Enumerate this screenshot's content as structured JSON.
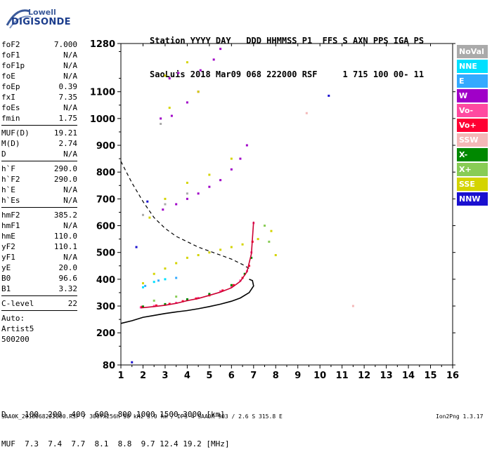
{
  "logo": {
    "line1": "Lowell",
    "line2": "DIGISONDE"
  },
  "header": {
    "line1": "Station YYYY DAY   DDD HHMMSS P1  FFS S AXN PPS IGA PS",
    "line2": "SaoLuis 2018 Mar09 068 222000 RSF     1 715 100 00- 11"
  },
  "params": {
    "group1": [
      {
        "label": "foF2",
        "value": "7.000"
      },
      {
        "label": "foF1",
        "value": "N/A"
      },
      {
        "label": "foF1p",
        "value": "N/A"
      },
      {
        "label": "foE",
        "value": "N/A"
      },
      {
        "label": "foEp",
        "value": "0.39"
      },
      {
        "label": "fxI",
        "value": "7.35"
      },
      {
        "label": "foEs",
        "value": "N/A"
      },
      {
        "label": "fmin",
        "value": "1.75"
      }
    ],
    "group2": [
      {
        "label": "MUF(D)",
        "value": "19.21"
      },
      {
        "label": "M(D)",
        "value": "2.74"
      },
      {
        "label": "D",
        "value": "N/A"
      }
    ],
    "group3": [
      {
        "label": "h`F",
        "value": "290.0"
      },
      {
        "label": "h`F2",
        "value": "290.0"
      },
      {
        "label": "h`E",
        "value": "N/A"
      },
      {
        "label": "h`Es",
        "value": "N/A"
      }
    ],
    "group4": [
      {
        "label": "hmF2",
        "value": "385.2"
      },
      {
        "label": "hmF1",
        "value": "N/A"
      },
      {
        "label": "hmE",
        "value": "110.0"
      },
      {
        "label": "yF2",
        "value": "110.1"
      },
      {
        "label": "yF1",
        "value": "N/A"
      },
      {
        "label": "yE",
        "value": "20.0"
      },
      {
        "label": "B0",
        "value": "96.6"
      },
      {
        "label": "B1",
        "value": "3.32"
      }
    ],
    "group5": [
      {
        "label": "C-level",
        "value": "22"
      }
    ],
    "auto": [
      "Auto:",
      "Artist5",
      "500200"
    ]
  },
  "legend": [
    {
      "label": "NoVal",
      "color": "#aaaaaa"
    },
    {
      "label": "NNE",
      "color": "#00e0ff"
    },
    {
      "label": "E",
      "color": "#33aaff"
    },
    {
      "label": "W",
      "color": "#a000c8"
    },
    {
      "label": "Vo-",
      "color": "#ff4aa0"
    },
    {
      "label": "Vo+",
      "color": "#ff0033"
    },
    {
      "label": "SSW",
      "color": "#f4b8b8"
    },
    {
      "label": "X-",
      "color": "#008800"
    },
    {
      "label": "X+",
      "color": "#88cc55"
    },
    {
      "label": "SSE",
      "color": "#d4d400"
    },
    {
      "label": "NNW",
      "color": "#1a10d0"
    }
  ],
  "footer": {
    "line1": "D    100  200  400  600  800 1000 1500 3000 [km]",
    "line2": "MUF  7.3  7.4  7.7  8.1  8.8  9.7 12.4 19.2 [MHz]",
    "source": "SAA0K_2018068222000.RSF / 300fx256h 50 kHz 5.0 km / DPS-4 SAA0K 903 / 2.6 S 315.8 E",
    "version": "Ion2Png 1.3.17"
  },
  "chart_data": {
    "type": "scatter",
    "xlim": [
      1,
      16
    ],
    "ylim": [
      80,
      1280
    ],
    "x_ticks": [
      1,
      2,
      3,
      4,
      5,
      6,
      7,
      8,
      9,
      10,
      11,
      12,
      13,
      14,
      15,
      16
    ],
    "y_ticks": [
      80,
      200,
      300,
      400,
      500,
      600,
      700,
      800,
      900,
      1000,
      1100,
      1280
    ],
    "grid": false,
    "legend_position": "right",
    "series": [
      {
        "name": "Vo-",
        "color": "#ff4aa0",
        "points": [
          [
            1.9,
            295
          ],
          [
            2.5,
            300
          ],
          [
            3.0,
            305
          ],
          [
            3.5,
            312
          ],
          [
            4.0,
            322
          ],
          [
            4.5,
            330
          ],
          [
            5.0,
            342
          ],
          [
            5.5,
            355
          ],
          [
            6.0,
            372
          ],
          [
            6.4,
            395
          ],
          [
            6.7,
            430
          ],
          [
            6.9,
            500
          ],
          [
            7.0,
            610
          ]
        ]
      },
      {
        "name": "Vo+",
        "color": "#ff0033",
        "points": [
          [
            1.95,
            297
          ],
          [
            2.6,
            302
          ],
          [
            3.2,
            308
          ],
          [
            3.8,
            318
          ],
          [
            4.4,
            328
          ],
          [
            5.0,
            340
          ],
          [
            5.6,
            358
          ],
          [
            6.1,
            378
          ],
          [
            6.5,
            405
          ],
          [
            6.8,
            450
          ],
          [
            6.95,
            540
          ]
        ]
      },
      {
        "name": "X-",
        "color": "#008800",
        "points": [
          [
            2.0,
            298
          ],
          [
            3.0,
            307
          ],
          [
            4.0,
            325
          ],
          [
            5.0,
            345
          ],
          [
            6.0,
            378
          ],
          [
            6.6,
            420
          ],
          [
            6.9,
            480
          ]
        ]
      },
      {
        "name": "W",
        "color": "#a000c8",
        "points": [
          [
            2.9,
            660
          ],
          [
            3.5,
            680
          ],
          [
            4.0,
            700
          ],
          [
            4.5,
            720
          ],
          [
            5.0,
            745
          ],
          [
            5.5,
            770
          ],
          [
            6.0,
            810
          ],
          [
            6.4,
            850
          ],
          [
            6.7,
            900
          ],
          [
            2.8,
            1000
          ],
          [
            3.3,
            1010
          ],
          [
            4.0,
            1060
          ],
          [
            4.5,
            1100
          ],
          [
            3.2,
            1150
          ],
          [
            3.6,
            1170
          ],
          [
            4.6,
            1180
          ],
          [
            5.2,
            1220
          ],
          [
            5.5,
            1260
          ]
        ]
      },
      {
        "name": "SSE",
        "color": "#d4d400",
        "points": [
          [
            2.0,
            385
          ],
          [
            2.5,
            420
          ],
          [
            3.0,
            440
          ],
          [
            3.5,
            460
          ],
          [
            4.0,
            480
          ],
          [
            4.5,
            490
          ],
          [
            5.0,
            500
          ],
          [
            5.5,
            510
          ],
          [
            6.0,
            520
          ],
          [
            6.5,
            530
          ],
          [
            7.2,
            550
          ],
          [
            7.8,
            580
          ],
          [
            8.0,
            490
          ],
          [
            2.3,
            630
          ],
          [
            3.0,
            700
          ],
          [
            4.0,
            760
          ],
          [
            5.0,
            790
          ],
          [
            6.0,
            850
          ],
          [
            3.0,
            1160
          ],
          [
            4.0,
            1210
          ],
          [
            4.5,
            1100
          ],
          [
            3.2,
            1040
          ]
        ]
      },
      {
        "name": "NNE",
        "color": "#00e0ff",
        "points": [
          [
            2.0,
            370
          ],
          [
            2.5,
            390
          ],
          [
            3.0,
            400
          ]
        ]
      },
      {
        "name": "E",
        "color": "#33aaff",
        "points": [
          [
            2.1,
            375
          ],
          [
            2.7,
            395
          ],
          [
            3.5,
            405
          ]
        ]
      },
      {
        "name": "NoVal",
        "color": "#aaaaaa",
        "points": [
          [
            2.0,
            640
          ],
          [
            3.0,
            680
          ],
          [
            4.0,
            720
          ],
          [
            2.8,
            980
          ]
        ]
      },
      {
        "name": "X+",
        "color": "#88cc55",
        "points": [
          [
            2.5,
            320
          ],
          [
            3.5,
            335
          ],
          [
            7.5,
            600
          ],
          [
            7.7,
            540
          ]
        ]
      },
      {
        "name": "NNW",
        "color": "#1a10d0",
        "points": [
          [
            1.7,
            520
          ],
          [
            2.2,
            690
          ],
          [
            10.4,
            1085
          ],
          [
            1.5,
            90
          ]
        ]
      },
      {
        "name": "SSW",
        "color": "#f4b8b8",
        "points": [
          [
            9.4,
            1020
          ],
          [
            11.5,
            300
          ]
        ]
      }
    ],
    "lines": [
      {
        "color": "#000000",
        "dashed": true,
        "points": [
          [
            1.0,
            840
          ],
          [
            1.5,
            760
          ],
          [
            2.0,
            690
          ],
          [
            2.5,
            630
          ],
          [
            3.0,
            590
          ],
          [
            3.5,
            560
          ],
          [
            4.0,
            540
          ],
          [
            4.5,
            520
          ],
          [
            5.0,
            505
          ],
          [
            5.5,
            490
          ],
          [
            6.0,
            475
          ],
          [
            6.5,
            455
          ],
          [
            6.8,
            440
          ]
        ]
      },
      {
        "color": "#000000",
        "dashed": false,
        "points": [
          [
            1.0,
            235
          ],
          [
            1.5,
            245
          ],
          [
            2.0,
            258
          ],
          [
            2.5,
            265
          ],
          [
            3.0,
            272
          ],
          [
            3.5,
            278
          ],
          [
            4.0,
            283
          ],
          [
            4.5,
            290
          ],
          [
            5.0,
            298
          ],
          [
            5.5,
            307
          ],
          [
            6.0,
            318
          ],
          [
            6.4,
            330
          ],
          [
            6.8,
            350
          ],
          [
            7.0,
            375
          ],
          [
            6.95,
            395
          ],
          [
            6.8,
            400
          ]
        ]
      },
      {
        "color": "#cc0033",
        "dashed": false,
        "points": [
          [
            1.9,
            293
          ],
          [
            2.5,
            298
          ],
          [
            3.0,
            303
          ],
          [
            3.5,
            310
          ],
          [
            4.0,
            320
          ],
          [
            4.5,
            328
          ],
          [
            5.0,
            340
          ],
          [
            5.5,
            352
          ],
          [
            6.0,
            368
          ],
          [
            6.4,
            392
          ],
          [
            6.7,
            428
          ],
          [
            6.9,
            495
          ],
          [
            7.0,
            615
          ]
        ]
      }
    ]
  }
}
